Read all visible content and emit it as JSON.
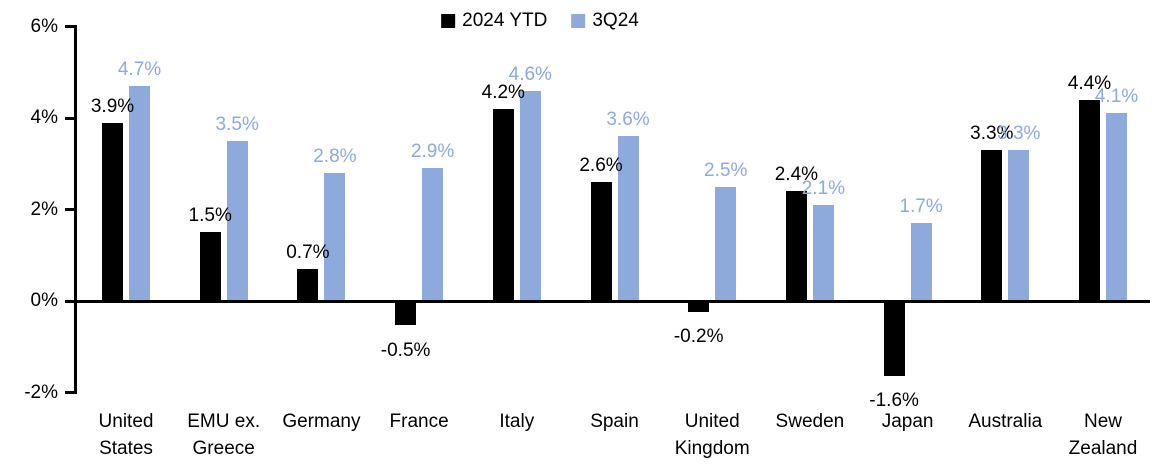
{
  "chart_data": {
    "type": "bar",
    "title": "",
    "categories": [
      "United States",
      "EMU ex. Greece",
      "Germany",
      "France",
      "Italy",
      "Spain",
      "United Kingdom",
      "Sweden",
      "Japan",
      "Australia",
      "New Zealand"
    ],
    "series": [
      {
        "name": "2024 YTD",
        "color": "#000000",
        "values": [
          3.9,
          1.5,
          0.7,
          -0.5,
          4.2,
          2.6,
          -0.2,
          2.4,
          -1.6,
          3.3,
          4.4
        ],
        "labels": [
          "3.9%",
          "1.5%",
          "0.7%",
          "-0.5%",
          "4.2%",
          "2.6%",
          "-0.2%",
          "2.4%",
          "-1.6%",
          "3.3%",
          "4.4%"
        ]
      },
      {
        "name": "3Q24",
        "color": "#8EA9DB",
        "values": [
          4.7,
          3.5,
          2.8,
          2.9,
          4.6,
          3.6,
          2.5,
          2.1,
          1.7,
          3.3,
          4.1
        ],
        "labels": [
          "4.7%",
          "3.5%",
          "2.8%",
          "2.9%",
          "4.6%",
          "3.6%",
          "2.5%",
          "2.1%",
          "1.7%",
          "3.3%",
          "4.1%"
        ]
      }
    ],
    "y_axis": {
      "ylim": [
        -2,
        6
      ],
      "ticks": [
        {
          "value": 6,
          "label": "6%"
        },
        {
          "value": 4,
          "label": "4%"
        },
        {
          "value": 2,
          "label": "2%"
        },
        {
          "value": 0,
          "label": "0%"
        },
        {
          "value": -2,
          "label": "-2%"
        }
      ]
    },
    "legend_position": "top-center",
    "grid": false,
    "axis_color": "#000000",
    "value_labels_shown": true
  }
}
